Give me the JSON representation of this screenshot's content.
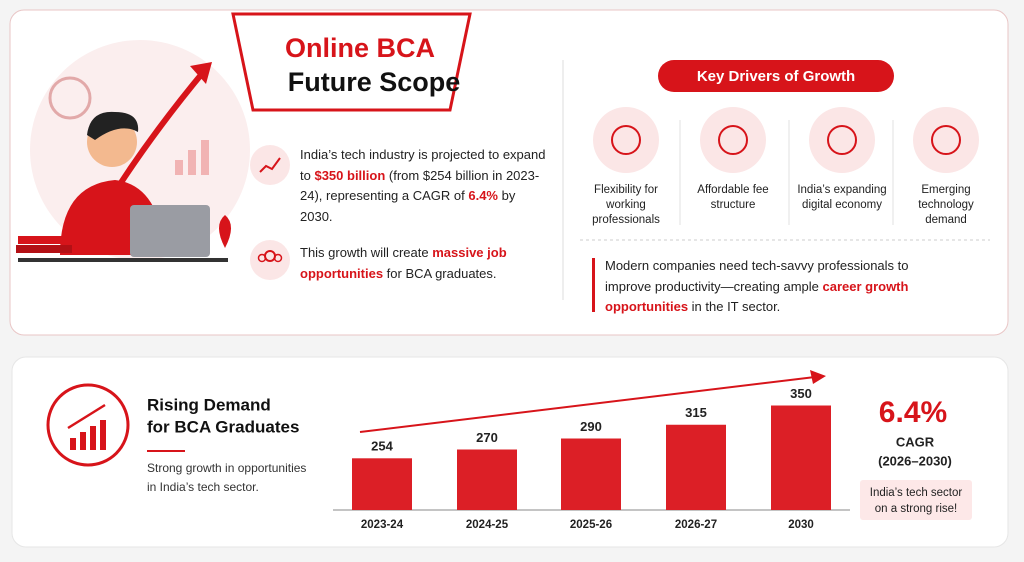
{
  "header": {
    "title_line1": "Online BCA",
    "title_line2": "Future Scope"
  },
  "intro": {
    "paragraphs": [
      [
        "India’s tech industry is projected to expand to ",
        "$350 billion",
        " (from $254 billion in 2023-24), representing a CAGR of ",
        "6.4%",
        " by 2030."
      ],
      [
        "This growth will create ",
        "massive job opportunities",
        " for BCA graduates."
      ]
    ]
  },
  "drivers": {
    "title": "Key Drivers of Growth",
    "items": [
      {
        "label": [
          "Flexibility for",
          "working",
          "professionals"
        ]
      },
      {
        "label": [
          "Affordable fee",
          "structure"
        ]
      },
      {
        "label": [
          "India’s expanding",
          "digital economy"
        ]
      },
      {
        "label": [
          "Emerging",
          "technology",
          "demand"
        ]
      }
    ]
  },
  "note": [
    "Modern companies need tech-savvy professionals to improve productivity—creating ample ",
    "career growth opportunities",
    " in the IT sector."
  ],
  "demand": {
    "title": [
      "Rising Demand",
      "for BCA Graduates"
    ],
    "description": [
      "Strong growth in opportunities",
      "in India’s tech sector."
    ]
  },
  "chart_data": {
    "type": "bar",
    "categories": [
      "2023-24",
      "2024-25",
      "2025-26",
      "2026-27",
      "2030"
    ],
    "values": [
      254,
      270,
      290,
      315,
      350
    ],
    "color": "#dc1f26",
    "ylim": [
      160,
      360
    ]
  },
  "cagr": {
    "value": "6.4%",
    "label": "CAGR",
    "period": "(2026–2030)",
    "badge": [
      "India’s tech sector",
      "on a strong rise!"
    ]
  }
}
